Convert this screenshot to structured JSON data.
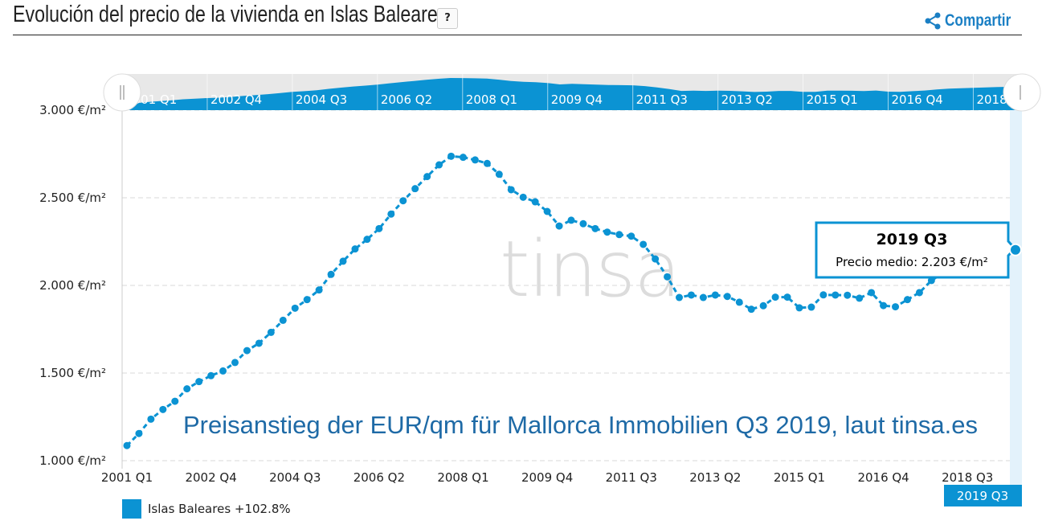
{
  "header": {
    "title": "Evolución del precio de la vivienda en Islas Baleares",
    "help_label": "?",
    "share_label": "Compartir"
  },
  "watermark": "tinsa",
  "annotation": "Preisanstieg der EUR/qm für Mallorca Immobilien Q3 2019, laut tinsa.es",
  "tooltip": {
    "title": "2019 Q3",
    "text": "Precio medio: 2.203 €/m²"
  },
  "crosshair_label": "2019 Q3",
  "legend": {
    "label": "Islas Baleares +102.8%"
  },
  "colors": {
    "series": "#0b93d3",
    "annotation": "#1e6aa6",
    "crosshair": "#e3f2fb"
  },
  "chart_data": {
    "type": "line",
    "title": "Evolución del precio de la vivienda en Islas Baleares",
    "xlabel": "",
    "ylabel": "",
    "ylim": [
      1000,
      3000
    ],
    "yticks": [
      1000,
      1500,
      2000,
      2500,
      3000
    ],
    "ytick_labels": [
      "1.000 €/m²",
      "1.500 €/m²",
      "2.000 €/m²",
      "2.500 €/m²",
      "3.000 €/m²"
    ],
    "xtick_labels": [
      "2001 Q1",
      "2002 Q4",
      "2004 Q3",
      "2006 Q2",
      "2008 Q1",
      "2009 Q4",
      "2011 Q3",
      "2013 Q2",
      "2015 Q1",
      "2016 Q4",
      "2018 Q3"
    ],
    "xtick_every": 7,
    "grid": true,
    "legend_position": "bottom-left",
    "start": "2001 Q1",
    "end": "2019 Q3",
    "series": [
      {
        "name": "Islas Baleares",
        "change": "+102.8%",
        "values": [
          1086,
          1155,
          1237,
          1292,
          1339,
          1410,
          1451,
          1485,
          1512,
          1560,
          1628,
          1670,
          1732,
          1801,
          1870,
          1919,
          1974,
          2063,
          2138,
          2208,
          2263,
          2324,
          2407,
          2483,
          2552,
          2621,
          2688,
          2737,
          2731,
          2716,
          2696,
          2634,
          2546,
          2503,
          2477,
          2422,
          2339,
          2372,
          2352,
          2324,
          2304,
          2290,
          2281,
          2234,
          2151,
          2049,
          1931,
          1945,
          1931,
          1945,
          1937,
          1904,
          1864,
          1884,
          1933,
          1933,
          1872,
          1876,
          1946,
          1945,
          1944,
          1927,
          1959,
          1885,
          1878,
          1919,
          1959,
          2028,
          2072,
          2102,
          2120,
          2150,
          2170,
          2185,
          2203
        ]
      }
    ]
  }
}
